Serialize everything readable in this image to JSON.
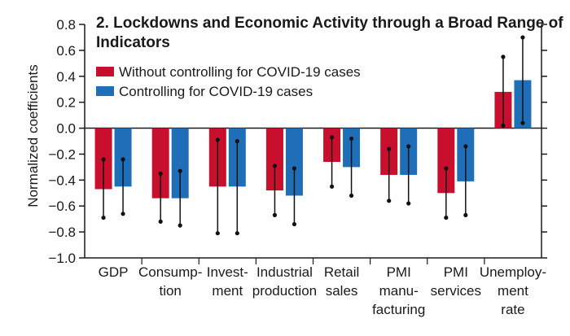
{
  "chart_data": {
    "type": "bar",
    "title_line1": "2. Lockdowns and Economic Activity through a Broad Range of",
    "title_line2": "Indicators",
    "ylabel": "Normalized coefficients",
    "xlabel": "",
    "ylim": [
      -1.0,
      0.8
    ],
    "yticks": [
      0.8,
      0.6,
      0.4,
      0.2,
      0.0,
      -0.2,
      -0.4,
      -0.6,
      -0.8,
      -1.0
    ],
    "ytick_labels": [
      "0.8",
      "0.6",
      "0.4",
      "0.2",
      "0.0",
      "−0.2",
      "−0.4",
      "−0.6",
      "−0.8",
      "−1.0"
    ],
    "grid": false,
    "legend_position": "top-left",
    "categories": [
      [
        "GDP"
      ],
      [
        "Consump-",
        "tion"
      ],
      [
        "Invest-",
        "ment"
      ],
      [
        "Industrial",
        "production"
      ],
      [
        "Retail",
        "sales"
      ],
      [
        "PMI",
        "manu-",
        "facturing"
      ],
      [
        "PMI",
        "services"
      ],
      [
        "Unemploy-",
        "ment",
        "rate"
      ]
    ],
    "series": [
      {
        "name": "Without controlling for COVID-19 cases",
        "color": "#c8102e",
        "values": [
          -0.47,
          -0.54,
          -0.45,
          -0.48,
          -0.26,
          -0.36,
          -0.5,
          0.28
        ],
        "lower": [
          -0.69,
          -0.72,
          -0.81,
          -0.67,
          -0.45,
          -0.56,
          -0.69,
          0.02
        ],
        "upper": [
          -0.24,
          -0.35,
          -0.09,
          -0.29,
          -0.07,
          -0.16,
          -0.31,
          0.55
        ]
      },
      {
        "name": "Controlling for COVID-19 cases",
        "color": "#1f6fb8",
        "values": [
          -0.45,
          -0.54,
          -0.45,
          -0.52,
          -0.3,
          -0.36,
          -0.41,
          0.37
        ],
        "lower": [
          -0.66,
          -0.75,
          -0.81,
          -0.74,
          -0.52,
          -0.58,
          -0.67,
          0.04
        ],
        "upper": [
          -0.24,
          -0.33,
          -0.1,
          -0.31,
          -0.08,
          -0.14,
          -0.14,
          0.7
        ]
      }
    ]
  }
}
